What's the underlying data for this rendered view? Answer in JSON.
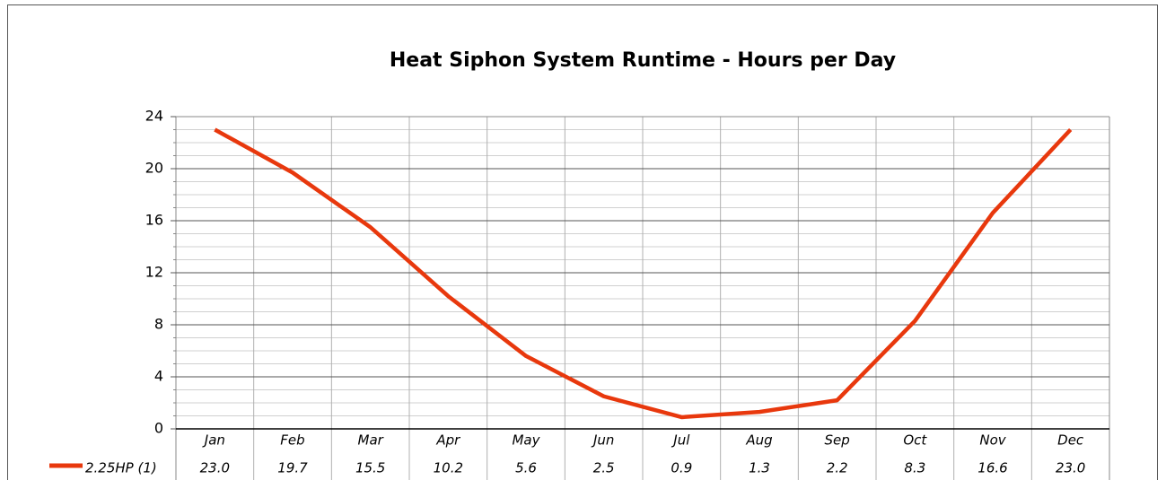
{
  "chart_data": {
    "type": "line",
    "title": "Heat Siphon System Runtime - Hours per Day",
    "categories": [
      "Jan",
      "Feb",
      "Mar",
      "Apr",
      "May",
      "Jun",
      "Jul",
      "Aug",
      "Sep",
      "Oct",
      "Nov",
      "Dec"
    ],
    "series": [
      {
        "name": "2.25HP (1)",
        "color": "#e8380d",
        "values": [
          23.0,
          19.7,
          15.5,
          10.2,
          5.6,
          2.5,
          0.9,
          1.3,
          2.2,
          8.3,
          16.6,
          23.0
        ],
        "value_labels": [
          "23.0",
          "19.7",
          "15.5",
          "10.2",
          "5.6",
          "2.5",
          "0.9",
          "1.3",
          "2.2",
          "8.3",
          "16.6",
          "23.0"
        ]
      }
    ],
    "ylim": [
      0,
      24
    ],
    "yticks": [
      0,
      4,
      8,
      12,
      16,
      20,
      24
    ],
    "grid": true
  }
}
